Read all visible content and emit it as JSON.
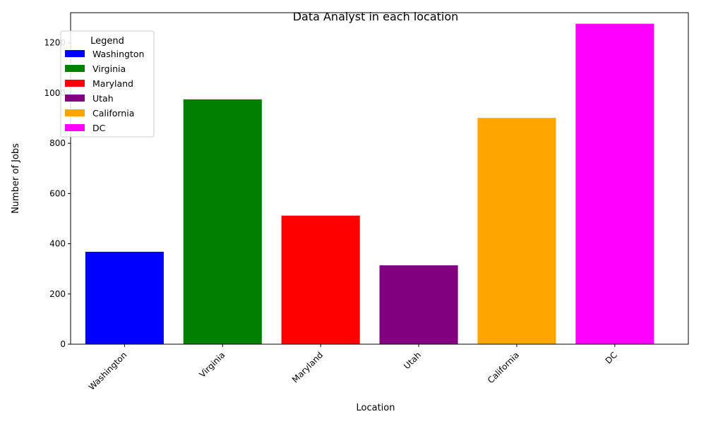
{
  "chart_data": {
    "type": "bar",
    "title": "Data Analyst in each location",
    "xlabel": "Location",
    "ylabel": "Number of Jobs",
    "categories": [
      "Washington",
      "Virginia",
      "Maryland",
      "Utah",
      "California",
      "DC"
    ],
    "values": [
      368,
      975,
      512,
      314,
      901,
      1276
    ],
    "colors": [
      "#0000ff",
      "#008000",
      "#ff0000",
      "#800080",
      "#ffa500",
      "#ff00ff"
    ],
    "ylim": [
      0,
      1320
    ],
    "yticks": [
      0,
      200,
      400,
      600,
      800,
      1000,
      1200
    ],
    "grid": false,
    "legend": {
      "title": "Legend",
      "placement": "upper-left",
      "entries": [
        "Washington",
        "Virginia",
        "Maryland",
        "Utah",
        "California",
        "DC"
      ]
    }
  }
}
